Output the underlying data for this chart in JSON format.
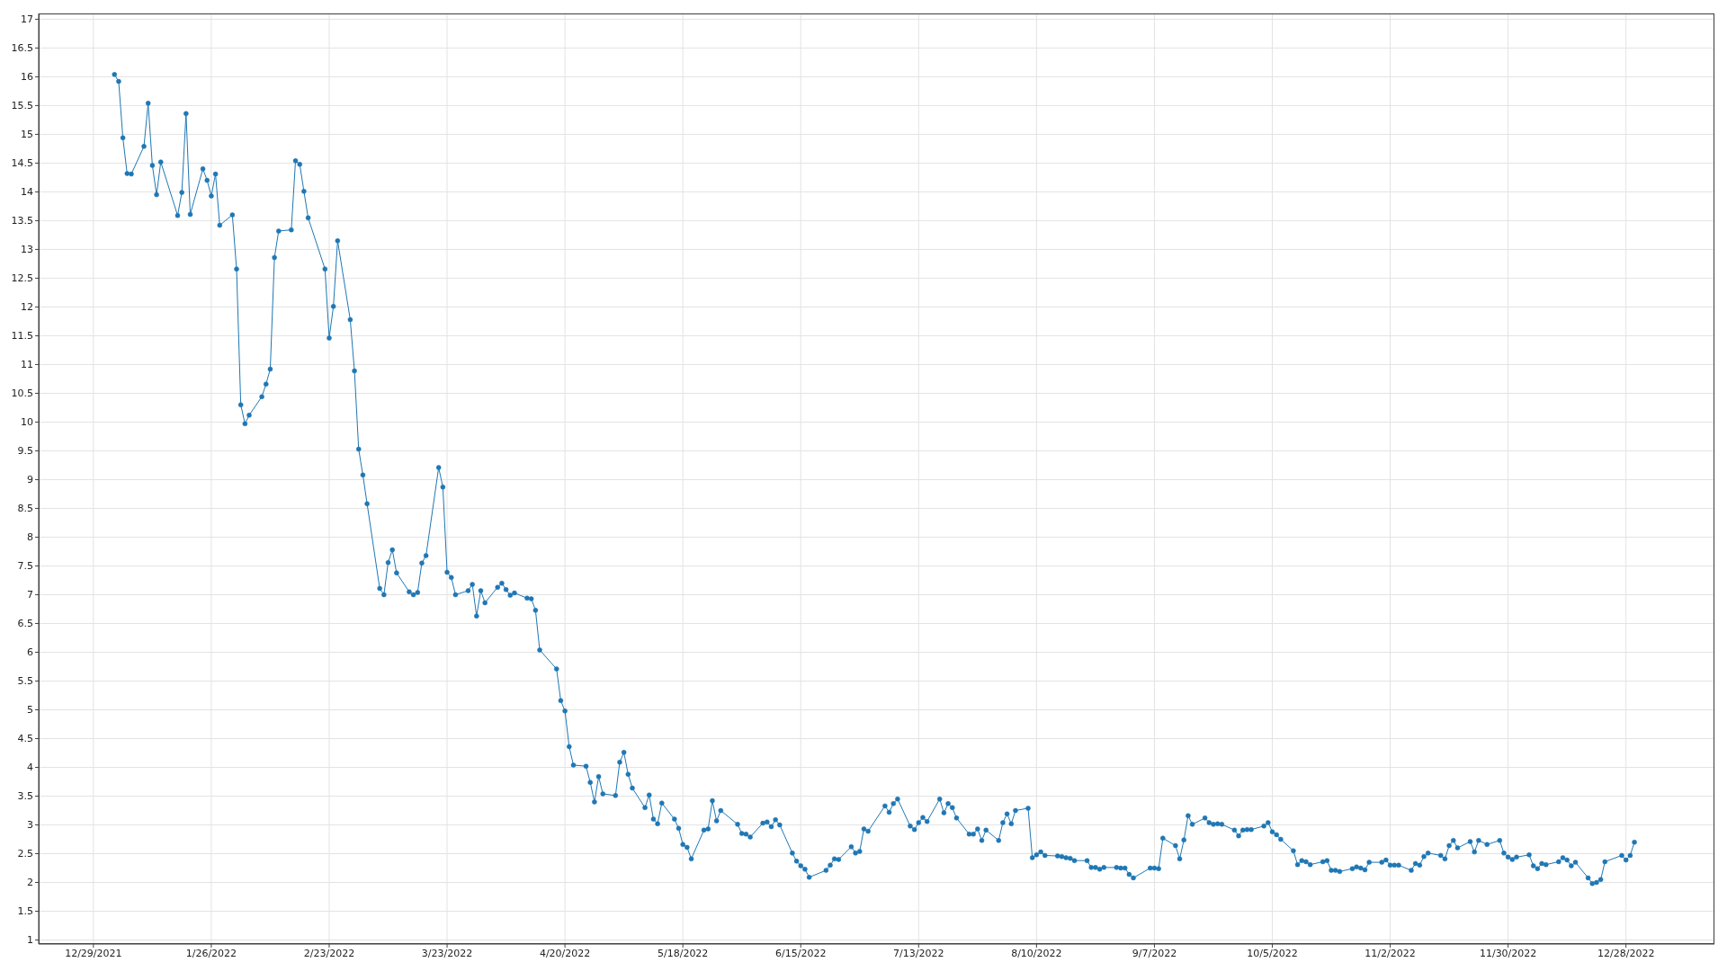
{
  "chart_data": {
    "type": "line",
    "x": [
      "2022-01-03",
      "2022-01-04",
      "2022-01-05",
      "2022-01-06",
      "2022-01-07",
      "2022-01-10",
      "2022-01-11",
      "2022-01-12",
      "2022-01-13",
      "2022-01-14",
      "2022-01-18",
      "2022-01-19",
      "2022-01-20",
      "2022-01-21",
      "2022-01-24",
      "2022-01-25",
      "2022-01-26",
      "2022-01-27",
      "2022-01-28",
      "2022-01-31",
      "2022-02-01",
      "2022-02-02",
      "2022-02-03",
      "2022-02-04",
      "2022-02-07",
      "2022-02-08",
      "2022-02-09",
      "2022-02-10",
      "2022-02-11",
      "2022-02-14",
      "2022-02-15",
      "2022-02-16",
      "2022-02-17",
      "2022-02-18",
      "2022-02-22",
      "2022-02-23",
      "2022-02-24",
      "2022-02-25",
      "2022-02-28",
      "2022-03-01",
      "2022-03-02",
      "2022-03-03",
      "2022-03-04",
      "2022-03-07",
      "2022-03-08",
      "2022-03-09",
      "2022-03-10",
      "2022-03-11",
      "2022-03-14",
      "2022-03-15",
      "2022-03-16",
      "2022-03-17",
      "2022-03-18",
      "2022-03-21",
      "2022-03-22",
      "2022-03-23",
      "2022-03-24",
      "2022-03-25",
      "2022-03-28",
      "2022-03-29",
      "2022-03-30",
      "2022-03-31",
      "2022-04-01",
      "2022-04-04",
      "2022-04-05",
      "2022-04-06",
      "2022-04-07",
      "2022-04-08",
      "2022-04-11",
      "2022-04-12",
      "2022-04-13",
      "2022-04-14",
      "2022-04-18",
      "2022-04-19",
      "2022-04-20",
      "2022-04-21",
      "2022-04-22",
      "2022-04-25",
      "2022-04-26",
      "2022-04-27",
      "2022-04-28",
      "2022-04-29",
      "2022-05-02",
      "2022-05-03",
      "2022-05-04",
      "2022-05-05",
      "2022-05-06",
      "2022-05-09",
      "2022-05-10",
      "2022-05-11",
      "2022-05-12",
      "2022-05-13",
      "2022-05-16",
      "2022-05-17",
      "2022-05-18",
      "2022-05-19",
      "2022-05-20",
      "2022-05-23",
      "2022-05-24",
      "2022-05-25",
      "2022-05-26",
      "2022-05-27",
      "2022-05-31",
      "2022-06-01",
      "2022-06-02",
      "2022-06-03",
      "2022-06-06",
      "2022-06-07",
      "2022-06-08",
      "2022-06-09",
      "2022-06-10",
      "2022-06-13",
      "2022-06-14",
      "2022-06-15",
      "2022-06-16",
      "2022-06-17",
      "2022-06-21",
      "2022-06-22",
      "2022-06-23",
      "2022-06-24",
      "2022-06-27",
      "2022-06-28",
      "2022-06-29",
      "2022-06-30",
      "2022-07-01",
      "2022-07-05",
      "2022-07-06",
      "2022-07-07",
      "2022-07-08",
      "2022-07-11",
      "2022-07-12",
      "2022-07-13",
      "2022-07-14",
      "2022-07-15",
      "2022-07-18",
      "2022-07-19",
      "2022-07-20",
      "2022-07-21",
      "2022-07-22",
      "2022-07-25",
      "2022-07-26",
      "2022-07-27",
      "2022-07-28",
      "2022-07-29",
      "2022-08-01",
      "2022-08-02",
      "2022-08-03",
      "2022-08-04",
      "2022-08-05",
      "2022-08-08",
      "2022-08-09",
      "2022-08-10",
      "2022-08-11",
      "2022-08-12",
      "2022-08-15",
      "2022-08-16",
      "2022-08-17",
      "2022-08-18",
      "2022-08-19",
      "2022-08-22",
      "2022-08-23",
      "2022-08-24",
      "2022-08-25",
      "2022-08-26",
      "2022-08-29",
      "2022-08-30",
      "2022-08-31",
      "2022-09-01",
      "2022-09-02",
      "2022-09-06",
      "2022-09-07",
      "2022-09-08",
      "2022-09-09",
      "2022-09-12",
      "2022-09-13",
      "2022-09-14",
      "2022-09-15",
      "2022-09-16",
      "2022-09-19",
      "2022-09-20",
      "2022-09-21",
      "2022-09-22",
      "2022-09-23",
      "2022-09-26",
      "2022-09-27",
      "2022-09-28",
      "2022-09-29",
      "2022-09-30",
      "2022-10-03",
      "2022-10-04",
      "2022-10-05",
      "2022-10-06",
      "2022-10-07",
      "2022-10-10",
      "2022-10-11",
      "2022-10-12",
      "2022-10-13",
      "2022-10-14",
      "2022-10-17",
      "2022-10-18",
      "2022-10-19",
      "2022-10-20",
      "2022-10-21",
      "2022-10-24",
      "2022-10-25",
      "2022-10-26",
      "2022-10-27",
      "2022-10-28",
      "2022-10-31",
      "2022-11-01",
      "2022-11-02",
      "2022-11-03",
      "2022-11-04",
      "2022-11-07",
      "2022-11-08",
      "2022-11-09",
      "2022-11-10",
      "2022-11-11",
      "2022-11-14",
      "2022-11-15",
      "2022-11-16",
      "2022-11-17",
      "2022-11-18",
      "2022-11-21",
      "2022-11-22",
      "2022-11-23",
      "2022-11-25",
      "2022-11-28",
      "2022-11-29",
      "2022-11-30",
      "2022-12-01",
      "2022-12-02",
      "2022-12-05",
      "2022-12-06",
      "2022-12-07",
      "2022-12-08",
      "2022-12-09",
      "2022-12-12",
      "2022-12-13",
      "2022-12-14",
      "2022-12-15",
      "2022-12-16",
      "2022-12-19",
      "2022-12-20",
      "2022-12-21",
      "2022-12-22",
      "2022-12-23",
      "2022-12-27",
      "2022-12-28",
      "2022-12-29",
      "2022-12-30"
    ],
    "values": [
      16.04,
      15.92,
      14.94,
      14.32,
      14.31,
      14.79,
      15.54,
      14.46,
      13.95,
      14.52,
      13.59,
      13.99,
      15.36,
      13.61,
      14.4,
      14.2,
      13.93,
      14.31,
      13.42,
      13.6,
      12.66,
      10.3,
      9.97,
      10.12,
      10.44,
      10.66,
      10.92,
      12.86,
      13.32,
      13.34,
      14.54,
      14.48,
      14.01,
      13.55,
      12.66,
      11.46,
      12.01,
      13.15,
      11.78,
      10.89,
      9.53,
      9.08,
      8.58,
      7.11,
      7.0,
      7.56,
      7.78,
      7.38,
      7.05,
      7.0,
      7.04,
      7.55,
      7.68,
      9.21,
      8.87,
      7.39,
      7.3,
      7.0,
      7.07,
      7.18,
      6.63,
      7.07,
      6.86,
      7.13,
      7.2,
      7.09,
      6.99,
      7.03,
      6.94,
      6.93,
      6.73,
      6.04,
      5.71,
      5.16,
      4.98,
      4.36,
      4.04,
      4.02,
      3.74,
      3.4,
      3.84,
      3.54,
      3.51,
      4.09,
      4.26,
      3.88,
      3.64,
      3.3,
      3.52,
      3.1,
      3.02,
      3.38,
      3.1,
      2.94,
      2.66,
      2.61,
      2.41,
      2.91,
      2.93,
      3.42,
      3.07,
      3.25,
      3.01,
      2.85,
      2.84,
      2.79,
      3.03,
      3.05,
      2.97,
      3.09,
      3.0,
      2.51,
      2.37,
      2.29,
      2.23,
      2.09,
      2.21,
      2.3,
      2.41,
      2.4,
      2.62,
      2.51,
      2.54,
      2.93,
      2.89,
      3.33,
      3.22,
      3.37,
      3.45,
      2.98,
      2.92,
      3.04,
      3.13,
      3.06,
      3.45,
      3.21,
      3.37,
      3.3,
      3.12,
      2.84,
      2.84,
      2.93,
      2.73,
      2.91,
      2.73,
      3.04,
      3.19,
      3.02,
      3.25,
      3.29,
      2.43,
      2.48,
      2.53,
      2.47,
      2.46,
      2.45,
      2.43,
      2.42,
      2.38,
      2.38,
      2.26,
      2.26,
      2.23,
      2.26,
      2.26,
      2.25,
      2.25,
      2.14,
      2.08,
      2.25,
      2.25,
      2.24,
      2.77,
      2.64,
      2.41,
      2.74,
      3.16,
      3.01,
      3.12,
      3.04,
      3.01,
      3.02,
      3.01,
      2.91,
      2.81,
      2.91,
      2.92,
      2.92,
      2.98,
      3.04,
      2.88,
      2.83,
      2.75,
      2.55,
      2.31,
      2.38,
      2.36,
      2.31,
      2.36,
      2.38,
      2.21,
      2.21,
      2.19,
      2.24,
      2.27,
      2.25,
      2.22,
      2.35,
      2.35,
      2.39,
      2.3,
      2.3,
      2.3,
      2.21,
      2.33,
      2.3,
      2.45,
      2.51,
      2.47,
      2.41,
      2.64,
      2.73,
      2.6,
      2.71,
      2.53,
      2.73,
      2.66,
      2.73,
      2.51,
      2.44,
      2.4,
      2.44,
      2.48,
      2.29,
      2.24,
      2.33,
      2.31,
      2.36,
      2.43,
      2.39,
      2.29,
      2.35,
      2.08,
      1.98,
      2.0,
      2.05,
      2.36,
      2.47,
      2.39,
      2.47,
      2.7
    ],
    "color": "#1f77b4",
    "xlim": [
      "2021-12-16",
      "2023-01-18"
    ],
    "xticks": [
      {
        "value": "2021-12-29",
        "label": "12/29/2021"
      },
      {
        "value": "2022-01-26",
        "label": "1/26/2022"
      },
      {
        "value": "2022-02-23",
        "label": "2/23/2022"
      },
      {
        "value": "2022-03-23",
        "label": "3/23/2022"
      },
      {
        "value": "2022-04-20",
        "label": "4/20/2022"
      },
      {
        "value": "2022-05-18",
        "label": "5/18/2022"
      },
      {
        "value": "2022-06-15",
        "label": "6/15/2022"
      },
      {
        "value": "2022-07-13",
        "label": "7/13/2022"
      },
      {
        "value": "2022-08-10",
        "label": "8/10/2022"
      },
      {
        "value": "2022-09-07",
        "label": "9/7/2022"
      },
      {
        "value": "2022-10-05",
        "label": "10/5/2022"
      },
      {
        "value": "2022-11-02",
        "label": "11/2/2022"
      },
      {
        "value": "2022-11-30",
        "label": "11/30/2022"
      },
      {
        "value": "2022-12-28",
        "label": "12/28/2022"
      }
    ],
    "ylim": [
      0.93,
      17.1
    ],
    "yticks": [
      1,
      1.5,
      2,
      2.5,
      3,
      3.5,
      4,
      4.5,
      5,
      5.5,
      6,
      6.5,
      7,
      7.5,
      8,
      8.5,
      9,
      9.5,
      10,
      10.5,
      11,
      11.5,
      12,
      12.5,
      13,
      13.5,
      14,
      14.5,
      15,
      15.5,
      16,
      16.5,
      17
    ],
    "grid": true,
    "marker": "circle",
    "line_style": "solid"
  }
}
